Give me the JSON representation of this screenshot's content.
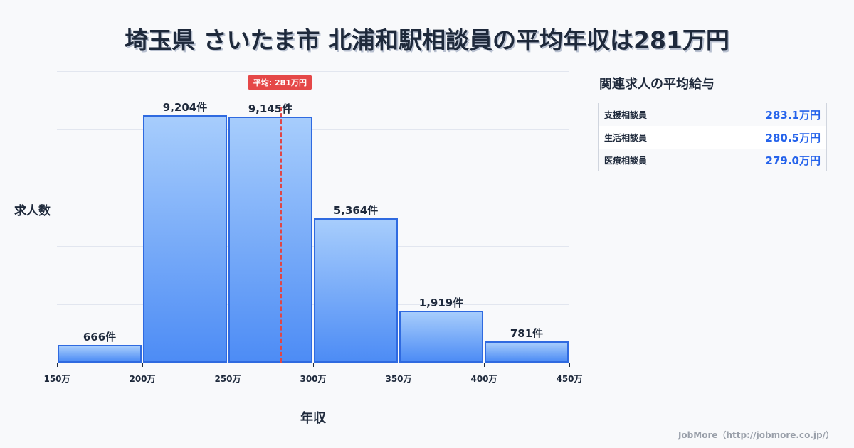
{
  "title": "埼玉県 さいたま市 北浦和駅相談員の平均年収は281万円",
  "axis": {
    "ylabel": "求人数",
    "xlabel": "年収"
  },
  "average": {
    "label": "平均: 281万円",
    "value": 281
  },
  "side_panel": {
    "title": "関連求人の平均給与",
    "rows": [
      {
        "name": "支援相談員",
        "value": "283.1万円"
      },
      {
        "name": "生活相談員",
        "value": "280.5万円"
      },
      {
        "name": "医療相談員",
        "value": "279.0万円"
      }
    ]
  },
  "footer": "JobMore（http://jobmore.co.jp/）",
  "colors": {
    "bar_top": "#a7cdfc",
    "bar_bottom": "#4d8cf5",
    "bar_border": "#2f6ae0",
    "average": "#e54848",
    "side_value": "#2563eb"
  },
  "chart_data": {
    "type": "bar",
    "title": "埼玉県 さいたま市 北浦和駅相談員の平均年収は281万円",
    "xlabel": "年収",
    "ylabel": "求人数",
    "categories": [
      "150万-200万",
      "200万-250万",
      "250万-300万",
      "300万-350万",
      "350万-400万",
      "400万-450万"
    ],
    "values": [
      666,
      9204,
      9145,
      5364,
      1919,
      781
    ],
    "value_labels": [
      "666件",
      "9,204件",
      "9,145件",
      "5,364件",
      "1,919件",
      "781件"
    ],
    "x_ticks": [
      "150万",
      "200万",
      "250万",
      "300万",
      "350万",
      "400万",
      "450万"
    ],
    "ylim": [
      0,
      10845
    ],
    "grid": true,
    "annotations": [
      {
        "type": "vline",
        "x": 281,
        "label": "平均: 281万円"
      }
    ]
  }
}
